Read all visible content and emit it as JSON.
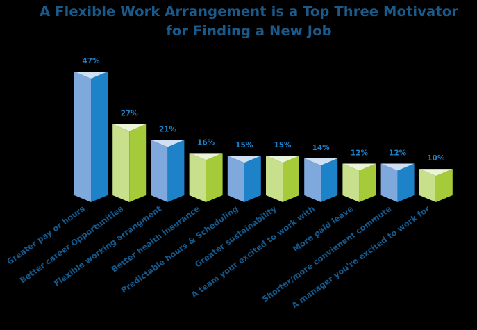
{
  "title": {
    "line1": "A Flexible Work Arrangement is a Top Three Motivator",
    "line2": "for Finding a New Job"
  },
  "colors": {
    "title": "#1a5a8a",
    "value_label": "#1e82c8",
    "category_label": "#15598c",
    "blue": {
      "left": "#7fa9dd",
      "right": "#1e82c8",
      "top": "#cfe0f5"
    },
    "green": {
      "left": "#c8df8c",
      "right": "#a6cb3a",
      "top": "#eaf5d8"
    }
  },
  "chart_data": {
    "type": "bar",
    "title": "A Flexible Work Arrangement is a Top Three Motivator for Finding a New Job",
    "xlabel": "",
    "ylabel": "",
    "ylim": [
      0,
      50
    ],
    "grid": false,
    "legend": null,
    "style": "3D triangular prism bars, alternating blue and green",
    "categories": [
      "Greater pay or hours",
      "Better career Opportunities",
      "Flexible working arrangment",
      "Better health insurance",
      "Predictable hours & Scheduling",
      "Greater sustainability",
      "A team your excited to work with",
      "More paid leave",
      "Shorter/more convienent commute",
      "A manager you're excited to work for"
    ],
    "values": [
      47,
      27,
      21,
      16,
      15,
      15,
      14,
      12,
      12,
      10
    ],
    "value_labels": [
      "47%",
      "27%",
      "21%",
      "16%",
      "15%",
      "15%",
      "14%",
      "12%",
      "12%",
      "10%"
    ],
    "bar_colors": [
      "blue",
      "green",
      "blue",
      "green",
      "blue",
      "green",
      "blue",
      "green",
      "blue",
      "green"
    ]
  }
}
